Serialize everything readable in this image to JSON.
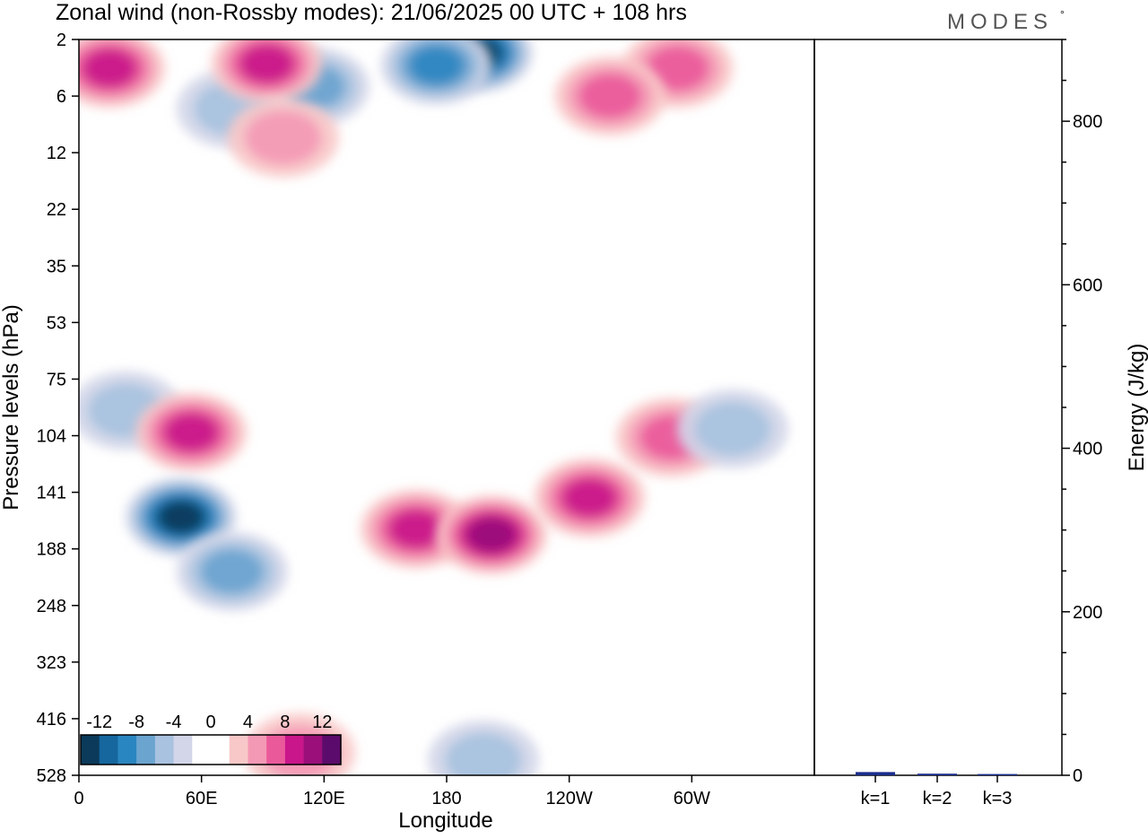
{
  "title": "Zonal wind (non-Rossby modes):  21/06/2025  00 UTC  + 108 hrs",
  "logo": {
    "text": "MODES",
    "mark": "°"
  },
  "chart_data": [
    {
      "type": "heatmap",
      "xlabel": "Longitude",
      "ylabel": "Pressure levels (hPa)",
      "xticks": [
        "0",
        "60E",
        "120E",
        "180",
        "120W",
        "60W"
      ],
      "xtick_degrees": [
        0,
        60,
        120,
        180,
        240,
        300
      ],
      "xlim": [
        0,
        360
      ],
      "yticks": [
        "2",
        "6",
        "12",
        "22",
        "35",
        "53",
        "75",
        "104",
        "141",
        "188",
        "248",
        "323",
        "416",
        "528"
      ],
      "colorbar": {
        "labels": [
          "-12",
          "-8",
          "-4",
          "0",
          "4",
          "8",
          "12"
        ],
        "colors": [
          "#0b3a5a",
          "#15679e",
          "#2a86c0",
          "#6aa4cf",
          "#a8c2df",
          "#d3d6e8",
          "#ffffff",
          "#ffffff",
          "#f8c8c8",
          "#f499b5",
          "#ea5a9b",
          "#c9168a",
          "#9a0f7a",
          "#5b0b6b"
        ]
      },
      "features": [
        {
          "lon": 195,
          "level": 2.6,
          "value": -12
        },
        {
          "lon": 175,
          "level": 3.3,
          "value": -8
        },
        {
          "lon": 115,
          "level": 5,
          "value": -6
        },
        {
          "lon": 75,
          "level": 7,
          "value": -3
        },
        {
          "lon": 15,
          "level": 3.5,
          "value": 8
        },
        {
          "lon": 92,
          "level": 3.2,
          "value": 8
        },
        {
          "lon": 100,
          "level": 10,
          "value": 3
        },
        {
          "lon": 293,
          "level": 3.5,
          "value": 6
        },
        {
          "lon": 260,
          "level": 6,
          "value": 5
        },
        {
          "lon": 23,
          "level": 90,
          "value": -4
        },
        {
          "lon": 55,
          "level": 102,
          "value": 8
        },
        {
          "lon": 50,
          "level": 160,
          "value": -12
        },
        {
          "lon": 75,
          "level": 210,
          "value": -5
        },
        {
          "lon": 165,
          "level": 170,
          "value": 8
        },
        {
          "lon": 202,
          "level": 175,
          "value": 10
        },
        {
          "lon": 250,
          "level": 145,
          "value": 8
        },
        {
          "lon": 290,
          "level": 105,
          "value": 6
        },
        {
          "lon": 320,
          "level": 100,
          "value": -4
        },
        {
          "lon": 198,
          "level": 495,
          "value": -3
        },
        {
          "lon": 108,
          "level": 480,
          "value": 4
        }
      ]
    },
    {
      "type": "bar",
      "categories": [
        "k=1",
        "k=2",
        "k=3"
      ],
      "values": [
        4,
        2,
        1.5
      ],
      "ylabel": "Energy (J/kg)",
      "yticks": [
        "0",
        "200",
        "400",
        "600",
        "800"
      ],
      "ylim": [
        0,
        900
      ],
      "bar_color": "#1a2c8c"
    }
  ]
}
